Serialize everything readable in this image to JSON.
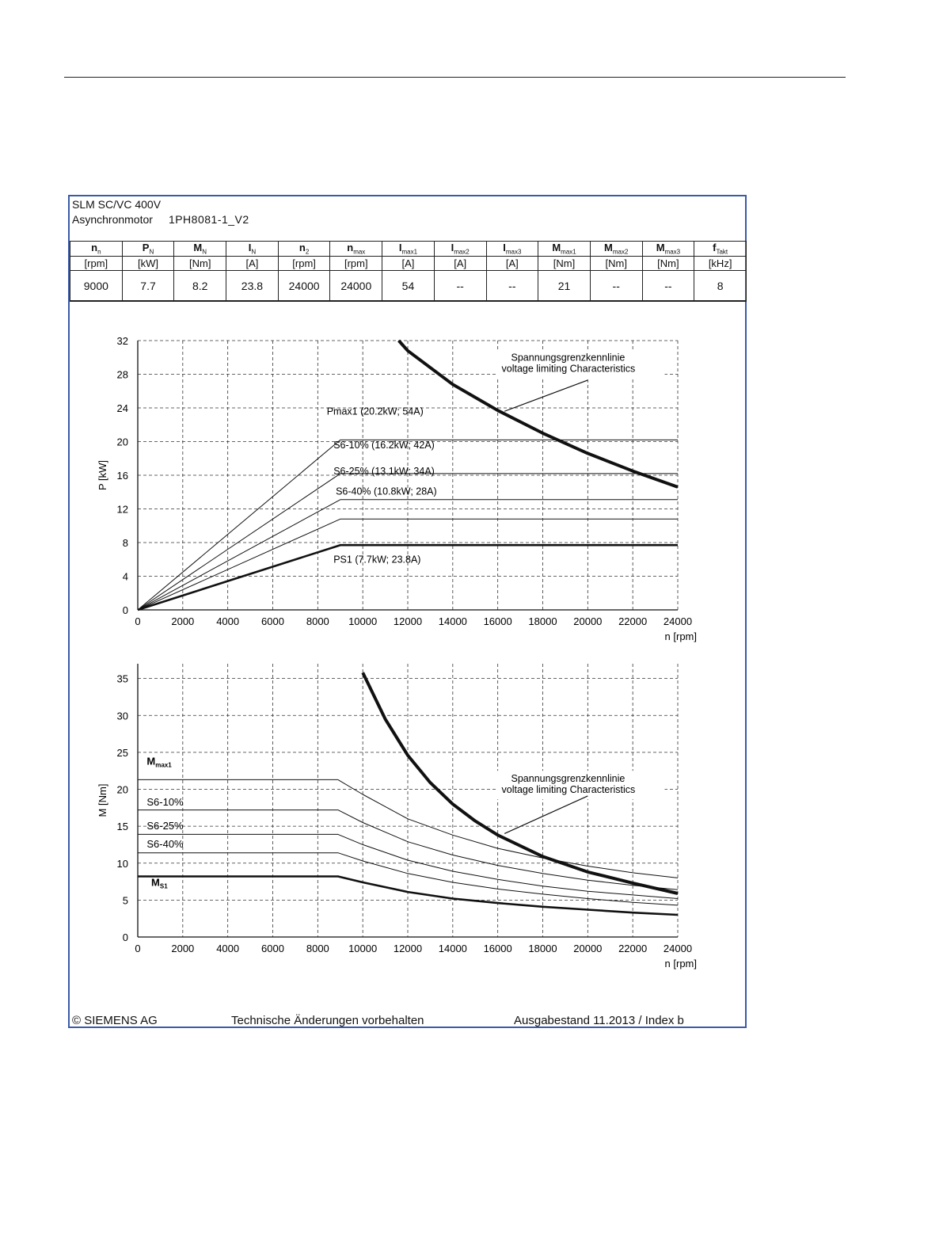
{
  "header": {
    "title": "SLM SC/VC 400V",
    "motor_type": "Asynchronmotor",
    "model": "1PH8081-1_V2"
  },
  "specs": {
    "columns": [
      {
        "sym": "n",
        "sub": "n",
        "unit": "[rpm]",
        "value": "9000"
      },
      {
        "sym": "P",
        "sub": "N",
        "unit": "[kW]",
        "value": "7.7"
      },
      {
        "sym": "M",
        "sub": "N",
        "unit": "[Nm]",
        "value": "8.2"
      },
      {
        "sym": "I",
        "sub": "N",
        "unit": "[A]",
        "value": "23.8"
      },
      {
        "sym": "n",
        "sub": "2",
        "unit": "[rpm]",
        "value": "24000"
      },
      {
        "sym": "n",
        "sub": "max",
        "unit": "[rpm]",
        "value": "24000"
      },
      {
        "sym": "I",
        "sub": "max1",
        "unit": "[A]",
        "value": "54"
      },
      {
        "sym": "I",
        "sub": "max2",
        "unit": "[A]",
        "value": "--"
      },
      {
        "sym": "I",
        "sub": "max3",
        "unit": "[A]",
        "value": "--"
      },
      {
        "sym": "M",
        "sub": "max1",
        "unit": "[Nm]",
        "value": "21"
      },
      {
        "sym": "M",
        "sub": "max2",
        "unit": "[Nm]",
        "value": "--"
      },
      {
        "sym": "M",
        "sub": "max3",
        "unit": "[Nm]",
        "value": "--"
      },
      {
        "sym": "f",
        "sub": "Takt",
        "unit": "[kHz]",
        "value": "8"
      }
    ]
  },
  "chart_data": [
    {
      "type": "line",
      "id": "power",
      "xlabel": "n [rpm]",
      "ylabel": "P [kW]",
      "xlim": [
        0,
        24000
      ],
      "ylim": [
        0,
        32
      ],
      "xticks": [
        0,
        2000,
        4000,
        6000,
        8000,
        10000,
        12000,
        14000,
        16000,
        18000,
        20000,
        22000,
        24000
      ],
      "yticks": [
        0,
        4,
        8,
        12,
        16,
        20,
        24,
        28,
        32
      ],
      "grid": true,
      "series": [
        {
          "name": "Pmax1",
          "label": "Pmax1 (20.2kW; 54A)",
          "width": 1,
          "x": [
            0,
            9000,
            24000
          ],
          "y": [
            0,
            20.2,
            20.2
          ]
        },
        {
          "name": "S6-10%",
          "label": "S6-10% (16.2kW; 42A)",
          "width": 1,
          "x": [
            0,
            9000,
            24000
          ],
          "y": [
            0,
            16.2,
            16.2
          ]
        },
        {
          "name": "S6-25%",
          "label": "S6-25% (13.1kW; 34A)",
          "width": 1,
          "x": [
            0,
            9000,
            24000
          ],
          "y": [
            0,
            13.1,
            13.1
          ]
        },
        {
          "name": "S6-40%",
          "label": "S6-40% (10.8kW; 28A)",
          "width": 1,
          "x": [
            0,
            9000,
            24000
          ],
          "y": [
            0,
            10.8,
            10.8
          ]
        },
        {
          "name": "PS1",
          "label": "PS1 (7.7kW; 23.8A)",
          "width": 2.6,
          "x": [
            0,
            9000,
            24000
          ],
          "y": [
            0,
            7.7,
            7.7
          ]
        },
        {
          "name": "voltage-limit",
          "width": 4,
          "x": [
            11600,
            12000,
            14000,
            16000,
            18000,
            20000,
            22000,
            24000
          ],
          "y": [
            32,
            30.8,
            26.8,
            23.7,
            21.0,
            18.6,
            16.5,
            14.6
          ]
        }
      ],
      "annotation": {
        "line1": "Spannungsgrenzkennlinie",
        "line2": "voltage limiting  Characteristics"
      }
    },
    {
      "type": "line",
      "id": "torque",
      "xlabel": "n [rpm]",
      "ylabel": "M [Nm]",
      "xlim": [
        0,
        24000
      ],
      "ylim": [
        0,
        37
      ],
      "xticks": [
        0,
        2000,
        4000,
        6000,
        8000,
        10000,
        12000,
        14000,
        16000,
        18000,
        20000,
        22000,
        24000
      ],
      "yticks": [
        0,
        5,
        10,
        15,
        20,
        25,
        30,
        35
      ],
      "grid": true,
      "series": [
        {
          "name": "Mmax1",
          "width": 1,
          "x": [
            0,
            8900,
            10000,
            12000,
            14000,
            16000,
            18000,
            20000,
            22000,
            24000
          ],
          "y": [
            21.3,
            21.3,
            19.3,
            16.0,
            13.8,
            12.0,
            10.7,
            9.6,
            8.7,
            8.0
          ]
        },
        {
          "name": "S6-10%",
          "width": 1,
          "x": [
            0,
            8900,
            10000,
            12000,
            14000,
            16000,
            18000,
            20000,
            22000,
            24000
          ],
          "y": [
            17.2,
            17.2,
            15.5,
            12.9,
            11.1,
            9.7,
            8.6,
            7.7,
            7.0,
            6.4
          ]
        },
        {
          "name": "S6-25%",
          "width": 1,
          "x": [
            0,
            8900,
            10000,
            12000,
            14000,
            16000,
            18000,
            20000,
            22000,
            24000
          ],
          "y": [
            13.9,
            13.9,
            12.5,
            10.4,
            8.9,
            7.8,
            6.9,
            6.2,
            5.7,
            5.2
          ]
        },
        {
          "name": "S6-40%",
          "width": 1,
          "x": [
            0,
            8900,
            10000,
            12000,
            14000,
            16000,
            18000,
            20000,
            22000,
            24000
          ],
          "y": [
            11.4,
            11.4,
            10.3,
            8.6,
            7.4,
            6.5,
            5.8,
            5.2,
            4.7,
            4.3
          ]
        },
        {
          "name": "MS1",
          "width": 2.6,
          "x": [
            0,
            8900,
            10000,
            12000,
            14000,
            16000,
            18000,
            20000,
            22000,
            24000
          ],
          "y": [
            8.2,
            8.2,
            7.4,
            6.1,
            5.2,
            4.6,
            4.1,
            3.7,
            3.3,
            3.0
          ]
        },
        {
          "name": "voltage-limit",
          "width": 4,
          "x": [
            10000,
            11000,
            12000,
            13000,
            14000,
            15000,
            16000,
            18000,
            20000,
            22000,
            24000
          ],
          "y": [
            35.8,
            29.5,
            24.6,
            20.9,
            18.0,
            15.7,
            13.8,
            10.9,
            8.8,
            7.3,
            5.9
          ]
        }
      ],
      "labels": [
        {
          "main": "M",
          "sub": "max1",
          "x": 400,
          "y": 23.3
        },
        {
          "main": "S6-10%",
          "sub": "",
          "x": 400,
          "y": 17.8
        },
        {
          "main": "S6-25%",
          "sub": "",
          "x": 400,
          "y": 14.6
        },
        {
          "main": "S6-40%",
          "sub": "",
          "x": 400,
          "y": 12.1
        },
        {
          "main": "M",
          "sub": "S1",
          "x": 600,
          "y": 6.9
        }
      ],
      "annotation": {
        "line1": "Spannungsgrenzkennlinie",
        "line2": "voltage limiting  Characteristics"
      }
    }
  ],
  "footer": {
    "copyright": "© SIEMENS AG",
    "notice": "Technische Änderungen vorbehalten",
    "edition": "Ausgabestand 11.2013 / Index b"
  }
}
